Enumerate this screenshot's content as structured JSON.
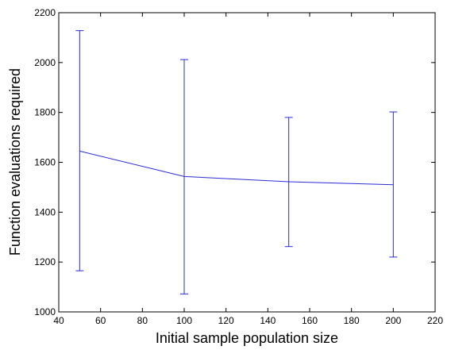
{
  "chart_data": {
    "type": "line",
    "title": "",
    "xlabel": "Initial sample population size",
    "ylabel": "Function evaluations required",
    "xlim": [
      40,
      220
    ],
    "ylim": [
      1000,
      2200
    ],
    "xticks": [
      40,
      60,
      80,
      100,
      120,
      140,
      160,
      180,
      200,
      220
    ],
    "yticks": [
      1000,
      1200,
      1400,
      1600,
      1800,
      2000,
      2200
    ],
    "grid": false,
    "legend": "none",
    "colors": {
      "line": "#2b2bd6",
      "axes": "#000000",
      "background": "#ffffff"
    },
    "series": [
      {
        "x": [
          50,
          100,
          150,
          200
        ],
        "y": [
          1645,
          1543,
          1522,
          1510
        ],
        "err_lower": [
          1165,
          1072,
          1262,
          1220
        ],
        "err_upper": [
          2128,
          2012,
          1780,
          1802
        ]
      }
    ]
  }
}
